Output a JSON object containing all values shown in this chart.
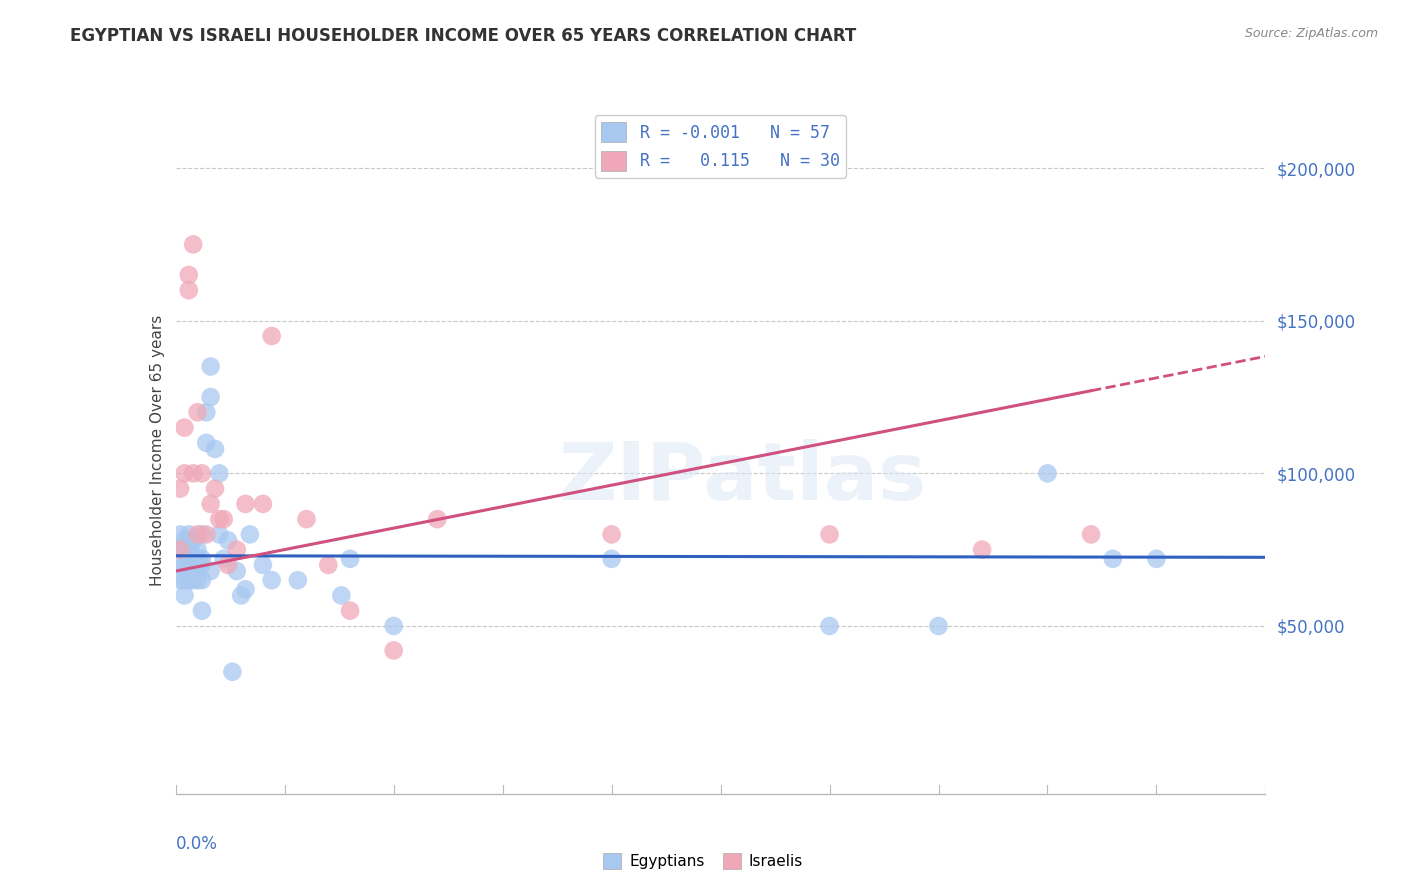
{
  "title": "EGYPTIAN VS ISRAELI HOUSEHOLDER INCOME OVER 65 YEARS CORRELATION CHART",
  "source": "Source: ZipAtlas.com",
  "ylabel": "Householder Income Over 65 years",
  "xlim": [
    0.0,
    0.25
  ],
  "ylim": [
    -5000,
    220000
  ],
  "yticks": [
    50000,
    100000,
    150000,
    200000
  ],
  "ytick_labels": [
    "$50,000",
    "$100,000",
    "$150,000",
    "$200,000"
  ],
  "background_color": "#ffffff",
  "grid_color": "#c8c8c8",
  "watermark": "ZIPatlas",
  "egyptian_color": "#a8c8f0",
  "israeli_color": "#f0a8b8",
  "egyptian_line_color": "#3060c0",
  "israeli_line_color": "#d05080",
  "egyptians_x": [
    0.001,
    0.001,
    0.001,
    0.001,
    0.002,
    0.002,
    0.002,
    0.002,
    0.002,
    0.003,
    0.003,
    0.003,
    0.003,
    0.003,
    0.003,
    0.004,
    0.004,
    0.004,
    0.004,
    0.004,
    0.005,
    0.005,
    0.005,
    0.005,
    0.005,
    0.006,
    0.006,
    0.006,
    0.006,
    0.006,
    0.007,
    0.007,
    0.008,
    0.008,
    0.008,
    0.009,
    0.01,
    0.01,
    0.011,
    0.012,
    0.013,
    0.014,
    0.015,
    0.016,
    0.017,
    0.02,
    0.022,
    0.028,
    0.038,
    0.04,
    0.05,
    0.1,
    0.15,
    0.175,
    0.2,
    0.215,
    0.225
  ],
  "egyptians_y": [
    75000,
    80000,
    65000,
    70000,
    78000,
    70000,
    75000,
    60000,
    65000,
    80000,
    70000,
    68000,
    72000,
    65000,
    75000,
    73000,
    68000,
    78000,
    72000,
    65000,
    75000,
    70000,
    68000,
    72000,
    65000,
    80000,
    72000,
    70000,
    65000,
    55000,
    120000,
    110000,
    135000,
    125000,
    68000,
    108000,
    100000,
    80000,
    72000,
    78000,
    35000,
    68000,
    60000,
    62000,
    80000,
    70000,
    65000,
    65000,
    60000,
    72000,
    50000,
    72000,
    50000,
    50000,
    100000,
    72000,
    72000
  ],
  "israelis_x": [
    0.001,
    0.001,
    0.002,
    0.002,
    0.003,
    0.003,
    0.004,
    0.004,
    0.005,
    0.005,
    0.006,
    0.007,
    0.008,
    0.009,
    0.01,
    0.011,
    0.012,
    0.014,
    0.016,
    0.02,
    0.022,
    0.03,
    0.035,
    0.04,
    0.05,
    0.06,
    0.1,
    0.15,
    0.185,
    0.21
  ],
  "israelis_y": [
    75000,
    95000,
    115000,
    100000,
    165000,
    160000,
    175000,
    100000,
    120000,
    80000,
    100000,
    80000,
    90000,
    95000,
    85000,
    85000,
    70000,
    75000,
    90000,
    90000,
    145000,
    85000,
    70000,
    55000,
    42000,
    85000,
    80000,
    80000,
    75000,
    80000
  ],
  "eg_line_intercept": 73000,
  "eg_line_slope": -2000,
  "is_line_x0": 0.0,
  "is_line_y0": 68000,
  "is_line_x1": 0.16,
  "is_line_y1": 113000
}
